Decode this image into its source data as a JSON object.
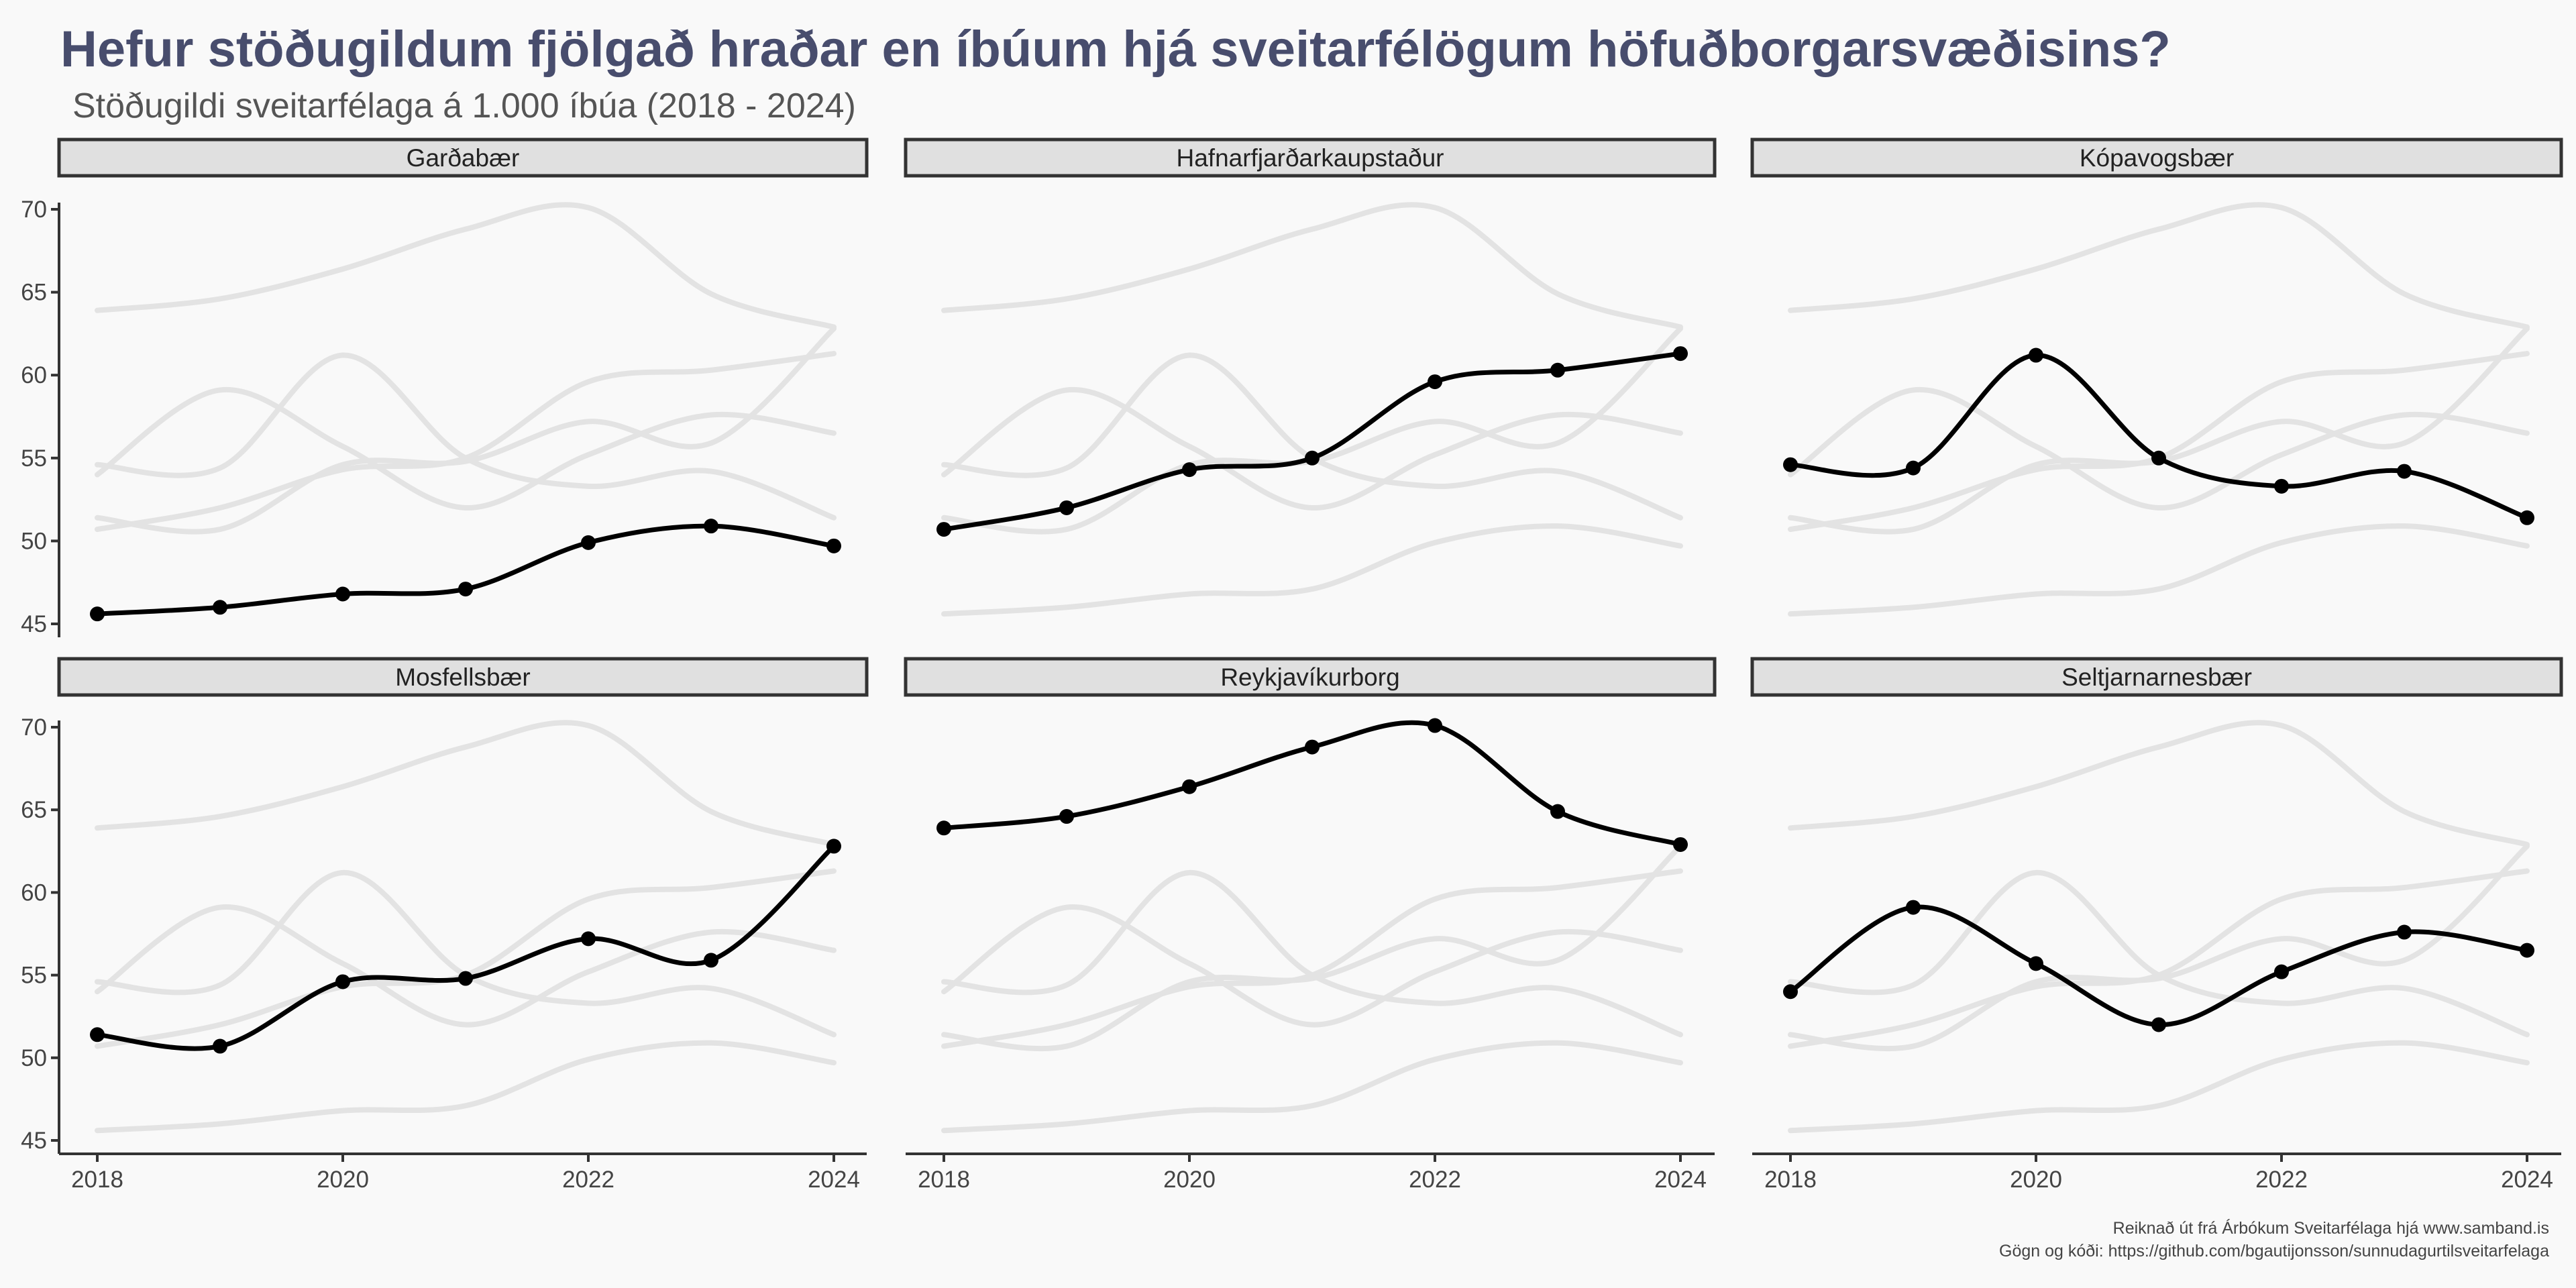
{
  "title": "Hefur stöðugildum fjölgað hraðar en íbúum hjá sveitarfélögum höfuðborgarsvæðisins?",
  "subtitle": "Stöðugildi sveitarfélaga á 1.000 íbúa (2018 - 2024)",
  "caption": {
    "line1": "Reiknað út frá Árbókum Sveitarfélaga hjá www.samband.is",
    "line2": "Gögn og kóði: https://github.com/bgautijonsson/sunnudagurtilsveitarfelaga"
  },
  "colors": {
    "background": "#f9f9f9",
    "title": "#484d6d",
    "highlight_line": "#000000",
    "background_lines": "#e3e3e3",
    "strip_fill": "#e0e0e0",
    "strip_border": "#333333"
  },
  "chart_data": {
    "type": "line",
    "layout": "small multiples, 2 rows x 3 columns",
    "x": [
      2018,
      2019,
      2020,
      2021,
      2022,
      2023,
      2024
    ],
    "xticks": [
      "2018",
      "2020",
      "2022",
      "2024"
    ],
    "yticks": [
      "45",
      "50",
      "55",
      "60",
      "65",
      "70"
    ],
    "ylim": [
      45,
      70
    ],
    "xlabel": "",
    "ylabel": "",
    "grid": false,
    "series": [
      {
        "name": "Garðabær",
        "values": [
          45.6,
          46.0,
          46.8,
          47.1,
          49.9,
          50.9,
          49.7
        ]
      },
      {
        "name": "Hafnarfjarðarkaupstaður",
        "values": [
          50.7,
          52.0,
          54.3,
          55.0,
          59.6,
          60.3,
          61.3
        ]
      },
      {
        "name": "Kópavogsbær",
        "values": [
          54.6,
          54.4,
          61.2,
          55.0,
          53.3,
          54.2,
          51.4
        ]
      },
      {
        "name": "Mosfellsbær",
        "values": [
          51.4,
          50.7,
          54.6,
          54.8,
          57.2,
          55.9,
          62.8
        ]
      },
      {
        "name": "Reykjavíkurborg",
        "values": [
          63.9,
          64.6,
          66.4,
          68.8,
          70.1,
          64.9,
          62.9
        ]
      },
      {
        "name": "Seltjarnarnesbær",
        "values": [
          54.0,
          59.1,
          55.7,
          52.0,
          55.2,
          57.6,
          56.5
        ]
      }
    ]
  }
}
